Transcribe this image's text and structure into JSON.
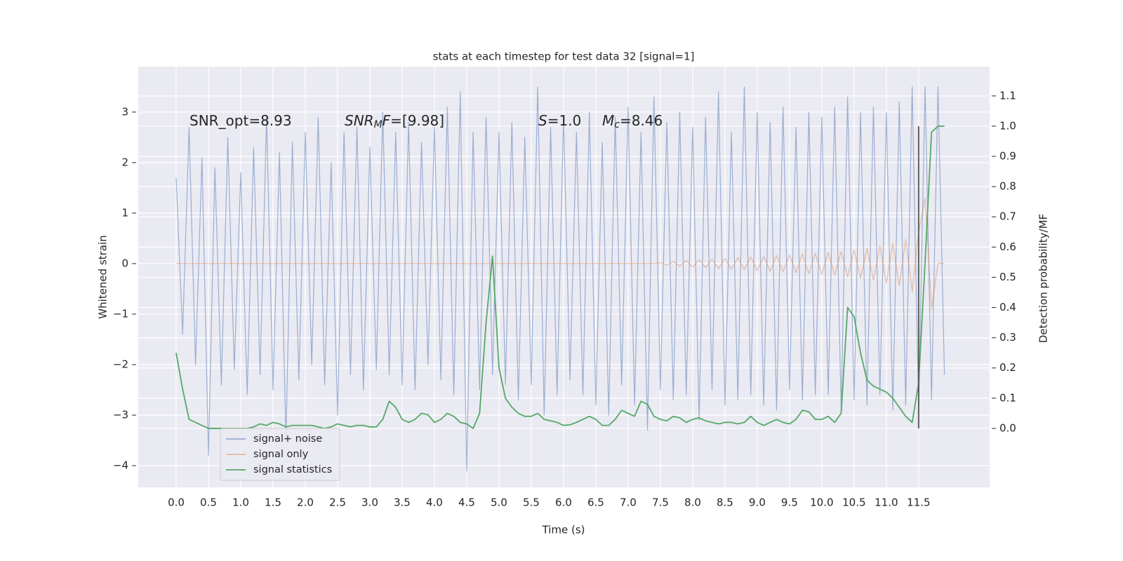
{
  "chart_data": {
    "type": "line",
    "title": "stats at each timestep for test data 32 [signal=1]",
    "xlabel": "Time (s)",
    "ylabel": "Whitened strain",
    "y2label": "Detection probability/MF",
    "annotations": [
      {
        "parts": [
          {
            "text": "SNR_opt=8.93"
          }
        ]
      },
      {
        "parts": [
          {
            "text": "SNR",
            "italic": true
          },
          {
            "text": "M",
            "italic": true,
            "sub": true
          },
          {
            "text": "F",
            "italic": true
          },
          {
            "text": "=[9.98]"
          }
        ]
      },
      {
        "parts": [
          {
            "text": "S",
            "italic": true
          },
          {
            "text": "=1.0"
          }
        ]
      },
      {
        "parts": [
          {
            "text": "M",
            "italic": true
          },
          {
            "text": "c",
            "italic": true,
            "sub": true
          },
          {
            "text": "=8.46"
          }
        ]
      }
    ],
    "x": [
      0.0,
      0.1,
      0.2,
      0.3,
      0.4,
      0.5,
      0.6,
      0.7,
      0.8,
      0.9,
      1.0,
      1.1,
      1.2,
      1.3,
      1.4,
      1.5,
      1.6,
      1.7,
      1.8,
      1.9,
      2.0,
      2.1,
      2.2,
      2.3,
      2.4,
      2.5,
      2.6,
      2.7,
      2.8,
      2.9,
      3.0,
      3.1,
      3.2,
      3.3,
      3.4,
      3.5,
      3.6,
      3.7,
      3.8,
      3.9,
      4.0,
      4.1,
      4.2,
      4.3,
      4.4,
      4.5,
      4.6,
      4.7,
      4.8,
      4.9,
      5.0,
      5.1,
      5.2,
      5.3,
      5.4,
      5.5,
      5.6,
      5.7,
      5.8,
      5.9,
      6.0,
      6.1,
      6.2,
      6.3,
      6.4,
      6.5,
      6.6,
      6.7,
      6.8,
      6.9,
      7.0,
      7.1,
      7.2,
      7.3,
      7.4,
      7.5,
      7.6,
      7.7,
      7.8,
      7.9,
      8.0,
      8.1,
      8.2,
      8.3,
      8.4,
      8.5,
      8.6,
      8.7,
      8.8,
      8.9,
      9.0,
      9.1,
      9.2,
      9.3,
      9.4,
      9.5,
      9.6,
      9.7,
      9.8,
      9.9,
      10.0,
      10.1,
      10.2,
      10.3,
      10.4,
      10.5,
      10.6,
      10.7,
      10.8,
      10.9,
      11.0,
      11.1,
      11.2,
      11.3,
      11.4,
      11.5,
      11.6,
      11.7,
      11.8,
      11.9
    ],
    "series": [
      {
        "name": "signal+ noise",
        "color": "#4c72b0",
        "axis": "y",
        "values": [
          1.7,
          -1.4,
          2.7,
          -2.0,
          2.1,
          -3.8,
          1.9,
          -2.4,
          2.5,
          -2.1,
          1.8,
          -2.6,
          2.3,
          -2.2,
          2.9,
          -2.5,
          2.2,
          -3.5,
          2.4,
          -2.3,
          2.6,
          -2.0,
          2.9,
          -2.4,
          2.0,
          -3.0,
          2.6,
          -2.2,
          2.7,
          -2.5,
          2.3,
          -2.1,
          3.0,
          -2.2,
          2.6,
          -2.4,
          2.8,
          -2.5,
          2.4,
          -2.0,
          2.7,
          -2.3,
          3.1,
          -2.6,
          3.4,
          -4.1,
          2.6,
          -2.5,
          2.9,
          -2.2,
          2.6,
          -2.4,
          2.8,
          -2.7,
          2.5,
          -2.4,
          3.5,
          -3.0,
          2.7,
          -2.6,
          2.9,
          -2.3,
          2.6,
          -2.6,
          3.0,
          -2.8,
          2.4,
          -3.0,
          2.9,
          -2.4,
          3.1,
          -2.8,
          2.6,
          -3.3,
          3.3,
          -2.5,
          2.8,
          -2.7,
          3.0,
          -2.6,
          2.7,
          -3.1,
          2.9,
          -2.5,
          3.4,
          -2.8,
          2.6,
          -2.7,
          3.5,
          -2.6,
          3.0,
          -2.8,
          2.8,
          -2.9,
          3.1,
          -2.5,
          2.7,
          -2.7,
          3.0,
          -2.6,
          2.9,
          -2.6,
          3.1,
          -2.9,
          3.3,
          -2.7,
          3.0,
          -2.8,
          3.1,
          -2.6,
          3.0,
          -2.9,
          3.2,
          -2.8,
          3.5,
          -2.9,
          3.5,
          -2.7,
          3.5,
          -2.2
        ]
      },
      {
        "name": "signal only",
        "color": "#dd8452",
        "axis": "y",
        "values": [
          0,
          0,
          0,
          0,
          0,
          0,
          0,
          0,
          0,
          0,
          0,
          0,
          0,
          0,
          0,
          0,
          0,
          0,
          0,
          0,
          0,
          0,
          0,
          0,
          0,
          0,
          0,
          0,
          0,
          0,
          0,
          0,
          0,
          0,
          0,
          0,
          0,
          0,
          0,
          0,
          0,
          0,
          0,
          0,
          0,
          0,
          0,
          0,
          0,
          0,
          0,
          0,
          0,
          0,
          0,
          0,
          0,
          0,
          0,
          0,
          0,
          0,
          0,
          0,
          0,
          0,
          0,
          0,
          0,
          0,
          0,
          0,
          0,
          0,
          0,
          0.02,
          -0.03,
          0.04,
          -0.05,
          0.06,
          -0.07,
          0.08,
          -0.08,
          0.09,
          -0.1,
          0.1,
          -0.11,
          0.12,
          -0.12,
          0.13,
          -0.14,
          0.14,
          -0.15,
          0.16,
          -0.16,
          0.17,
          -0.18,
          0.19,
          -0.2,
          0.2,
          -0.21,
          0.22,
          -0.23,
          0.24,
          -0.26,
          0.27,
          -0.29,
          0.3,
          -0.33,
          0.35,
          -0.38,
          0.4,
          -0.44,
          0.48,
          -0.55,
          0.62,
          1.3,
          -0.9,
          0,
          0
        ]
      },
      {
        "name": "signal statistics",
        "color": "#55a868",
        "axis": "y2",
        "values": [
          0.25,
          0.13,
          0.03,
          0.02,
          0.01,
          0.0,
          0.0,
          0.0,
          0.0,
          0.0,
          0.0,
          0.0,
          0.005,
          0.015,
          0.01,
          0.02,
          0.015,
          0.005,
          0.01,
          0.01,
          0.01,
          0.01,
          0.005,
          0.0,
          0.005,
          0.015,
          0.01,
          0.005,
          0.01,
          0.01,
          0.005,
          0.005,
          0.03,
          0.09,
          0.07,
          0.03,
          0.02,
          0.03,
          0.05,
          0.045,
          0.02,
          0.03,
          0.05,
          0.04,
          0.02,
          0.015,
          0.0,
          0.05,
          0.35,
          0.57,
          0.2,
          0.1,
          0.07,
          0.05,
          0.04,
          0.04,
          0.05,
          0.03,
          0.025,
          0.02,
          0.01,
          0.012,
          0.02,
          0.03,
          0.04,
          0.03,
          0.01,
          0.01,
          0.03,
          0.06,
          0.05,
          0.04,
          0.09,
          0.08,
          0.04,
          0.03,
          0.025,
          0.04,
          0.035,
          0.02,
          0.03,
          0.035,
          0.025,
          0.02,
          0.015,
          0.02,
          0.02,
          0.015,
          0.02,
          0.04,
          0.02,
          0.01,
          0.02,
          0.03,
          0.02,
          0.015,
          0.03,
          0.06,
          0.055,
          0.03,
          0.03,
          0.04,
          0.02,
          0.05,
          0.4,
          0.37,
          0.25,
          0.16,
          0.14,
          0.13,
          0.12,
          0.1,
          0.07,
          0.04,
          0.02,
          0.15,
          0.55,
          0.98,
          1.0,
          1.0
        ]
      }
    ],
    "vline": {
      "x": 11.5,
      "ymin": 0,
      "ymax": 1,
      "color": "#555555",
      "axis": "y2"
    },
    "xlim": [
      -0.587,
      12.6
    ],
    "xticks": [
      {
        "value": 0,
        "label": "0.0"
      },
      0.5,
      {
        "value": 1,
        "label": "1.0"
      },
      1.5,
      {
        "value": 2,
        "label": "2.0"
      },
      2.5,
      {
        "value": 3,
        "label": "3.0"
      },
      3.5,
      {
        "value": 4,
        "label": "4.0"
      },
      4.5,
      {
        "value": 5,
        "label": "5.0"
      },
      5.5,
      {
        "value": 6,
        "label": "6.0"
      },
      6.5,
      {
        "value": 7,
        "label": "7.0"
      },
      7.5,
      {
        "value": 8,
        "label": "8.0"
      },
      8.5,
      {
        "value": 9,
        "label": "9.0"
      },
      9.5,
      {
        "value": 10,
        "label": "10.0"
      },
      10.5,
      {
        "value": 11,
        "label": "11.0"
      },
      11.5
    ],
    "ylim": [
      -4.43,
      3.9
    ],
    "yticks": [
      {
        "value": -4,
        "label": "−4"
      },
      {
        "value": -3,
        "label": "−3"
      },
      {
        "value": -2,
        "label": "−2"
      },
      {
        "value": -1,
        "label": "−1"
      },
      0,
      1,
      2,
      3
    ],
    "y2lim": [
      -0.195,
      1.197
    ],
    "y2ticks": [
      {
        "value": 0,
        "label": "0.0"
      },
      0.1,
      0.2,
      0.3,
      0.4,
      0.5,
      0.6,
      0.7,
      0.8,
      0.9,
      {
        "value": 1,
        "label": "1.0"
      },
      1.1
    ],
    "grid": true,
    "legend": "lower left"
  }
}
